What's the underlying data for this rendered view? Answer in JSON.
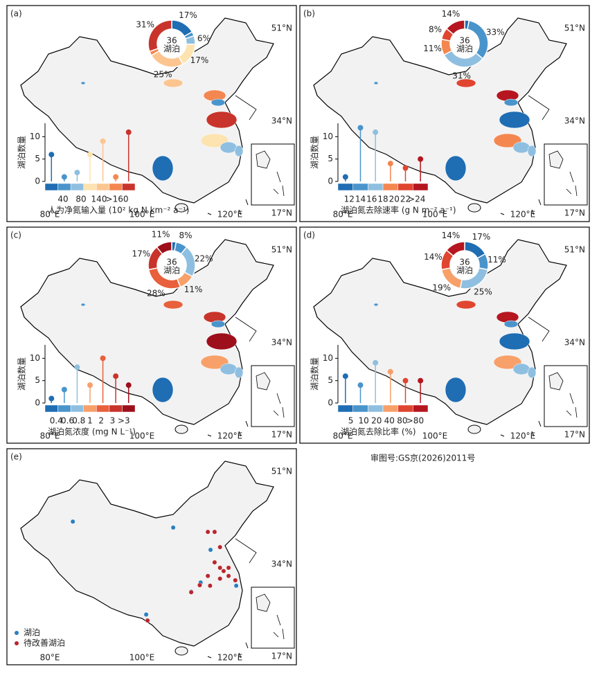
{
  "map_axes": {
    "lat": [
      "51°N",
      "34°N",
      "17°N"
    ],
    "lon": [
      "80°E",
      "100°E",
      "120°E"
    ]
  },
  "panels": [
    {
      "label": "(a)",
      "donut_center": "36",
      "donut_sub": "湖泊",
      "y_label": "湖泊数量",
      "yticks": [
        0,
        5,
        10
      ],
      "ylim": [
        0,
        13
      ],
      "colors": [
        "#1f6db3",
        "#4a94cc",
        "#8fbfe0",
        "#fde3b0",
        "#fcc590",
        "#f4874f",
        "#c8342b"
      ],
      "values": [
        6,
        1,
        2,
        6,
        9,
        1,
        11
      ],
      "donut": [
        {
          "value": 17,
          "label": "17%"
        },
        {
          "value": 3
        },
        {
          "value": 6,
          "label": "6%"
        },
        {
          "value": 17,
          "label": "17%"
        },
        {
          "value": 25,
          "label": "25%"
        },
        {
          "value": 3
        },
        {
          "value": 31,
          "label": "31%"
        }
      ],
      "colorbar_labels": [
        "40",
        "80",
        "140",
        ">160"
      ],
      "axis_title": "人为净氮输入量 (10² kg N km⁻² a⁻¹)"
    },
    {
      "label": "(b)",
      "donut_center": "36",
      "donut_sub": "湖泊",
      "y_label": "湖泊数量",
      "yticks": [
        0,
        5,
        10
      ],
      "ylim": [
        0,
        13
      ],
      "colors": [
        "#1f6db3",
        "#4a94cc",
        "#8fbfe0",
        "#f4874f",
        "#e0452f",
        "#b5161f"
      ],
      "values": [
        1,
        12,
        11,
        4,
        3,
        5
      ],
      "donut": [
        {
          "value": 3
        },
        {
          "value": 33,
          "label": "33%"
        },
        {
          "value": 31,
          "label": "31%"
        },
        {
          "value": 11,
          "label": "11%"
        },
        {
          "value": 8,
          "label": "8%"
        },
        {
          "value": 14,
          "label": "14%"
        }
      ],
      "colorbar_labels": [
        "12",
        "14",
        "16",
        "18",
        "20",
        "22",
        ">24"
      ],
      "axis_title": "湖泊氮去除速率 (g N m⁻² a⁻¹)"
    },
    {
      "label": "(c)",
      "donut_center": "36",
      "donut_sub": "湖泊",
      "y_label": "湖泊数量",
      "yticks": [
        0,
        5,
        10
      ],
      "ylim": [
        0,
        13
      ],
      "colors": [
        "#1f6db3",
        "#4a94cc",
        "#8fbfe0",
        "#f7a06a",
        "#e8603c",
        "#c8342b",
        "#9e0f1c"
      ],
      "values": [
        1,
        3,
        8,
        4,
        10,
        6,
        4
      ],
      "donut": [
        {
          "value": 3
        },
        {
          "value": 8,
          "label": "8%"
        },
        {
          "value": 22,
          "label": "22%"
        },
        {
          "value": 11,
          "label": "11%"
        },
        {
          "value": 28,
          "label": "28%"
        },
        {
          "value": 17,
          "label": "17%"
        },
        {
          "value": 11,
          "label": "11%"
        }
      ],
      "colorbar_labels": [
        "0.4",
        "0.6",
        "0.8",
        "1",
        "2",
        "3",
        ">3"
      ],
      "axis_title": "湖泊氮浓度 (mg N L⁻¹)"
    },
    {
      "label": "(d)",
      "donut_center": "36",
      "donut_sub": "湖泊",
      "y_label": "湖泊数量",
      "yticks": [
        0,
        5,
        10
      ],
      "ylim": [
        0,
        13
      ],
      "colors": [
        "#1f6db3",
        "#4a94cc",
        "#8fbfe0",
        "#f7a06a",
        "#e0452f",
        "#b5161f"
      ],
      "values": [
        6,
        4,
        9,
        7,
        5,
        5
      ],
      "donut": [
        {
          "value": 17,
          "label": "17%"
        },
        {
          "value": 11,
          "label": "11%"
        },
        {
          "value": 25,
          "label": "25%"
        },
        {
          "value": 19,
          "label": "19%"
        },
        {
          "value": 14,
          "label": "14%"
        },
        {
          "value": 14,
          "label": "14%"
        }
      ],
      "colorbar_labels": [
        "5",
        "10",
        "20",
        "40",
        "80",
        ">80"
      ],
      "axis_title": "湖泊氮去除比率 (%)"
    }
  ],
  "panel_e": {
    "label": "(e)",
    "series": [
      {
        "name": "湖泊",
        "color": "#2a7fc0",
        "lon": [
          115.7,
          113.5,
          111.4,
          101.4,
          121.4,
          85.1,
          107.4
        ],
        "lat": [
          36.6,
          30.6,
          28.9,
          24.7,
          30.0,
          41.8,
          40.7
        ]
      },
      {
        "name": "待改善湖泊",
        "color": "#b8262e",
        "lon": [
          115.1,
          116.6,
          117.8,
          116.6,
          117.8,
          118.6,
          119.7,
          117.8,
          121.2,
          115.1,
          113.3,
          111.4,
          115.6,
          101.7,
          119.7
        ],
        "lat": [
          39.9,
          39.9,
          37.1,
          34.3,
          33.3,
          32.7,
          31.8,
          31.3,
          31.0,
          31.8,
          30.1,
          28.8,
          30.0,
          23.6,
          33.3
        ]
      }
    ]
  },
  "review_number": "审图号:GS京(2026)2011号"
}
